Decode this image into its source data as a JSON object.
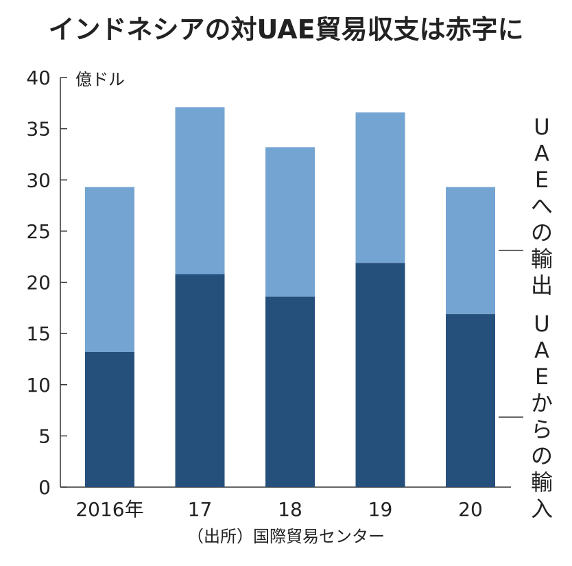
{
  "chart_data": {
    "type": "bar",
    "stacked": true,
    "title": "インドネシアの対UAE貿易収支は赤字に",
    "unit_label": "億ドル",
    "source": "（出所）国際貿易センター",
    "categories": [
      "2016年",
      "17",
      "18",
      "19",
      "20"
    ],
    "ylim": [
      0,
      40
    ],
    "yticks": [
      0,
      5,
      10,
      15,
      20,
      25,
      30,
      35,
      40
    ],
    "grid": false,
    "legend_placement": "right",
    "series": [
      {
        "name": "UAEからの輸入",
        "color": "#26507c",
        "values": [
          13.2,
          20.8,
          18.6,
          21.9,
          16.9
        ]
      },
      {
        "name": "UAEへの輸出",
        "color": "#74a4d2",
        "values": [
          16.1,
          16.3,
          14.6,
          14.7,
          12.4
        ]
      }
    ]
  }
}
